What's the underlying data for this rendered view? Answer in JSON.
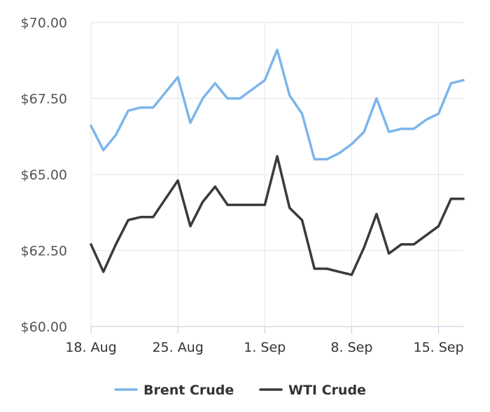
{
  "chart_data": {
    "type": "line",
    "x": [
      "2025-08-18",
      "2025-08-19",
      "2025-08-20",
      "2025-08-21",
      "2025-08-22",
      "2025-08-23",
      "2025-08-24",
      "2025-08-25",
      "2025-08-26",
      "2025-08-27",
      "2025-08-28",
      "2025-08-29",
      "2025-08-30",
      "2025-08-31",
      "2025-09-01",
      "2025-09-02",
      "2025-09-03",
      "2025-09-04",
      "2025-09-05",
      "2025-09-06",
      "2025-09-07",
      "2025-09-08",
      "2025-09-09",
      "2025-09-10",
      "2025-09-11",
      "2025-09-12",
      "2025-09-13",
      "2025-09-14",
      "2025-09-15",
      "2025-09-16",
      "2025-09-17"
    ],
    "series": [
      {
        "name": "Brent Crude",
        "color": "#7cb5ec",
        "values": [
          66.6,
          65.8,
          66.3,
          67.1,
          67.2,
          67.2,
          67.7,
          68.2,
          66.7,
          67.5,
          68.0,
          67.5,
          67.5,
          67.8,
          68.1,
          69.1,
          67.6,
          67.0,
          65.5,
          65.5,
          65.7,
          66.0,
          66.4,
          67.5,
          66.4,
          66.5,
          66.5,
          66.8,
          67.0,
          68.0,
          68.1
        ]
      },
      {
        "name": "WTI Crude",
        "color": "#3a3a3a",
        "values": [
          62.7,
          61.8,
          62.7,
          63.5,
          63.6,
          63.6,
          64.2,
          64.8,
          63.3,
          64.1,
          64.6,
          64.0,
          64.0,
          64.0,
          64.0,
          65.6,
          63.9,
          63.5,
          61.9,
          61.9,
          61.8,
          61.7,
          62.6,
          63.7,
          62.4,
          62.7,
          62.7,
          63.0,
          63.3,
          64.2,
          64.2
        ]
      }
    ],
    "ylim": [
      60,
      70
    ],
    "yticks": [
      60,
      62.5,
      65,
      67.5,
      70
    ],
    "ytick_labels": [
      "$60.00",
      "$62.50",
      "$65.00",
      "$67.50",
      "$70.00"
    ],
    "xticks": [
      {
        "x": "2025-08-18",
        "label": "18. Aug"
      },
      {
        "x": "2025-08-25",
        "label": "25. Aug"
      },
      {
        "x": "2025-09-01",
        "label": "1. Sep"
      },
      {
        "x": "2025-09-08",
        "label": "8. Sep"
      },
      {
        "x": "2025-09-15",
        "label": "15. Sep"
      }
    ],
    "title": "",
    "xlabel": "",
    "ylabel": "",
    "grid": true,
    "legend": "bottom-center"
  }
}
